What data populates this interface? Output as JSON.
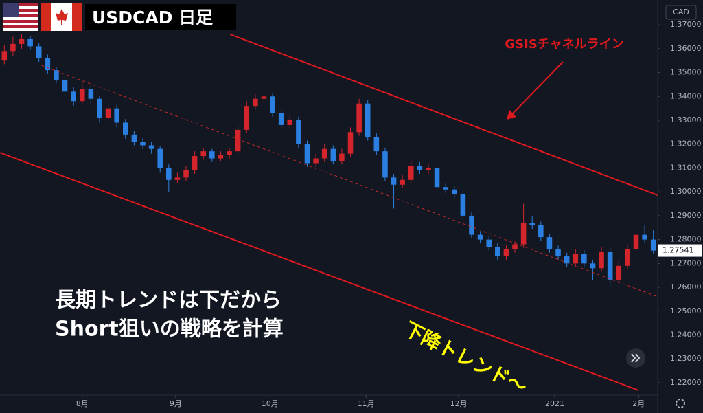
{
  "chart_data": {
    "type": "candlestick",
    "title": "USDCAD 日足",
    "currency": "CAD",
    "up_color": "#d3252b",
    "down_color": "#2b7fe0",
    "xlim": [
      -0.5,
      75.5
    ],
    "ylim": [
      1.2148,
      1.3804
    ],
    "xticks": [
      {
        "value": 9,
        "label": "8月"
      },
      {
        "value": 19.8,
        "label": "9月"
      },
      {
        "value": 30.7,
        "label": "10月"
      },
      {
        "value": 41.8,
        "label": "11月"
      },
      {
        "value": 52.5,
        "label": "12月"
      },
      {
        "value": 63.6,
        "label": "2021"
      },
      {
        "value": 73.3,
        "label": "2月"
      }
    ],
    "yticks": [
      {
        "value": 1.37,
        "label": "1.37000"
      },
      {
        "value": 1.36,
        "label": "1.36000"
      },
      {
        "value": 1.35,
        "label": "1.35000"
      },
      {
        "value": 1.34,
        "label": "1.34000"
      },
      {
        "value": 1.33,
        "label": "1.33000"
      },
      {
        "value": 1.32,
        "label": "1.32000"
      },
      {
        "value": 1.31,
        "label": "1.31000"
      },
      {
        "value": 1.3,
        "label": "1.30000"
      },
      {
        "value": 1.29,
        "label": "1.29000"
      },
      {
        "value": 1.28,
        "label": "1.28000"
      },
      {
        "value": 1.27,
        "label": "1.27000"
      },
      {
        "value": 1.26,
        "label": "1.26000"
      },
      {
        "value": 1.25,
        "label": "1.25000"
      },
      {
        "value": 1.24,
        "label": "1.24000"
      },
      {
        "value": 1.23,
        "label": "1.23000"
      },
      {
        "value": 1.22,
        "label": "1.22000"
      }
    ],
    "last_price": 1.27541,
    "ohlc": [
      [
        1.355,
        1.3615,
        1.3535,
        1.359
      ],
      [
        1.359,
        1.365,
        1.357,
        1.362
      ],
      [
        1.362,
        1.366,
        1.36,
        1.364
      ],
      [
        1.364,
        1.3655,
        1.3595,
        1.361
      ],
      [
        1.361,
        1.3625,
        1.3545,
        1.356
      ],
      [
        1.356,
        1.3575,
        1.3495,
        1.351
      ],
      [
        1.351,
        1.3525,
        1.3455,
        1.347
      ],
      [
        1.347,
        1.3485,
        1.34,
        1.342
      ],
      [
        1.342,
        1.344,
        1.336,
        1.338
      ],
      [
        1.338,
        1.346,
        1.3365,
        1.343
      ],
      [
        1.343,
        1.3445,
        1.337,
        1.339
      ],
      [
        1.339,
        1.34,
        1.329,
        1.331
      ],
      [
        1.331,
        1.337,
        1.3295,
        1.335
      ],
      [
        1.335,
        1.3365,
        1.327,
        1.329
      ],
      [
        1.329,
        1.3305,
        1.322,
        1.324
      ],
      [
        1.324,
        1.3255,
        1.3195,
        1.321
      ],
      [
        1.321,
        1.3225,
        1.318,
        1.3195
      ],
      [
        1.3195,
        1.321,
        1.316,
        1.318
      ],
      [
        1.318,
        1.319,
        1.308,
        1.31
      ],
      [
        1.31,
        1.3115,
        1.3,
        1.305
      ],
      [
        1.305,
        1.308,
        1.3035,
        1.306
      ],
      [
        1.306,
        1.311,
        1.3045,
        1.309
      ],
      [
        1.309,
        1.317,
        1.3075,
        1.315
      ],
      [
        1.315,
        1.3185,
        1.3135,
        1.317
      ],
      [
        1.317,
        1.318,
        1.3125,
        1.314
      ],
      [
        1.314,
        1.317,
        1.313,
        1.3155
      ],
      [
        1.3155,
        1.3185,
        1.314,
        1.317
      ],
      [
        1.317,
        1.328,
        1.3155,
        1.326
      ],
      [
        1.326,
        1.338,
        1.3245,
        1.336
      ],
      [
        1.336,
        1.341,
        1.3345,
        1.339
      ],
      [
        1.339,
        1.342,
        1.3375,
        1.34
      ],
      [
        1.34,
        1.3415,
        1.3315,
        1.333
      ],
      [
        1.333,
        1.3345,
        1.3265,
        1.328
      ],
      [
        1.328,
        1.332,
        1.3265,
        1.33
      ],
      [
        1.33,
        1.3315,
        1.3185,
        1.32
      ],
      [
        1.32,
        1.3215,
        1.3105,
        1.312
      ],
      [
        1.312,
        1.316,
        1.3105,
        1.314
      ],
      [
        1.314,
        1.32,
        1.3125,
        1.318
      ],
      [
        1.318,
        1.3195,
        1.3115,
        1.313
      ],
      [
        1.313,
        1.318,
        1.3115,
        1.316
      ],
      [
        1.316,
        1.327,
        1.3145,
        1.325
      ],
      [
        1.325,
        1.339,
        1.3235,
        1.337
      ],
      [
        1.337,
        1.3385,
        1.3215,
        1.323
      ],
      [
        1.323,
        1.3245,
        1.3155,
        1.317
      ],
      [
        1.317,
        1.3185,
        1.3045,
        1.306
      ],
      [
        1.306,
        1.3075,
        1.293,
        1.303
      ],
      [
        1.303,
        1.307,
        1.3015,
        1.305
      ],
      [
        1.305,
        1.313,
        1.3035,
        1.311
      ],
      [
        1.311,
        1.3125,
        1.3075,
        1.309
      ],
      [
        1.309,
        1.3115,
        1.3075,
        1.31
      ],
      [
        1.31,
        1.3115,
        1.3005,
        1.302
      ],
      [
        1.302,
        1.3035,
        1.2995,
        1.301
      ],
      [
        1.301,
        1.3025,
        1.2975,
        1.299
      ],
      [
        1.299,
        1.3005,
        1.2885,
        1.29
      ],
      [
        1.29,
        1.2915,
        1.2805,
        1.282
      ],
      [
        1.282,
        1.2835,
        1.2785,
        1.28
      ],
      [
        1.28,
        1.2815,
        1.2755,
        1.277
      ],
      [
        1.277,
        1.2785,
        1.2715,
        1.273
      ],
      [
        1.273,
        1.2775,
        1.2715,
        1.276
      ],
      [
        1.276,
        1.2795,
        1.2745,
        1.278
      ],
      [
        1.278,
        1.295,
        1.2765,
        1.287
      ],
      [
        1.287,
        1.29,
        1.2845,
        1.286
      ],
      [
        1.286,
        1.2875,
        1.2795,
        1.281
      ],
      [
        1.281,
        1.2825,
        1.2745,
        1.276
      ],
      [
        1.276,
        1.2775,
        1.2715,
        1.273
      ],
      [
        1.273,
        1.2745,
        1.2685,
        1.27
      ],
      [
        1.27,
        1.276,
        1.2685,
        1.274
      ],
      [
        1.274,
        1.2755,
        1.2685,
        1.27
      ],
      [
        1.27,
        1.2715,
        1.263,
        1.268
      ],
      [
        1.268,
        1.277,
        1.2665,
        1.275
      ],
      [
        1.275,
        1.2765,
        1.26,
        1.263
      ],
      [
        1.263,
        1.271,
        1.2615,
        1.269
      ],
      [
        1.269,
        1.278,
        1.2675,
        1.276
      ],
      [
        1.276,
        1.288,
        1.2745,
        1.282
      ],
      [
        1.282,
        1.286,
        1.2785,
        1.28
      ],
      [
        1.28,
        1.284,
        1.274,
        1.2754
      ]
    ],
    "trend_lines": [
      {
        "color": "#e0191f",
        "dashed": false,
        "x": [
          26.1,
          75.5
        ],
        "y": [
          1.366,
          1.2986
        ]
      },
      {
        "color": "#e0191f",
        "dashed": false,
        "x": [
          -0.5,
          73.3
        ],
        "y": [
          1.3164,
          1.2168
        ]
      },
      {
        "color": "#c42a2a",
        "dashed": true,
        "x": [
          4.3,
          75.5
        ],
        "y": [
          1.353,
          1.256
        ]
      }
    ],
    "channel_label": "GSISチャネルライン",
    "note_lines": [
      "長期トレンドは下だから",
      "Short狙いの戦略を計算"
    ],
    "trend_label": "下降トレンド〜"
  }
}
